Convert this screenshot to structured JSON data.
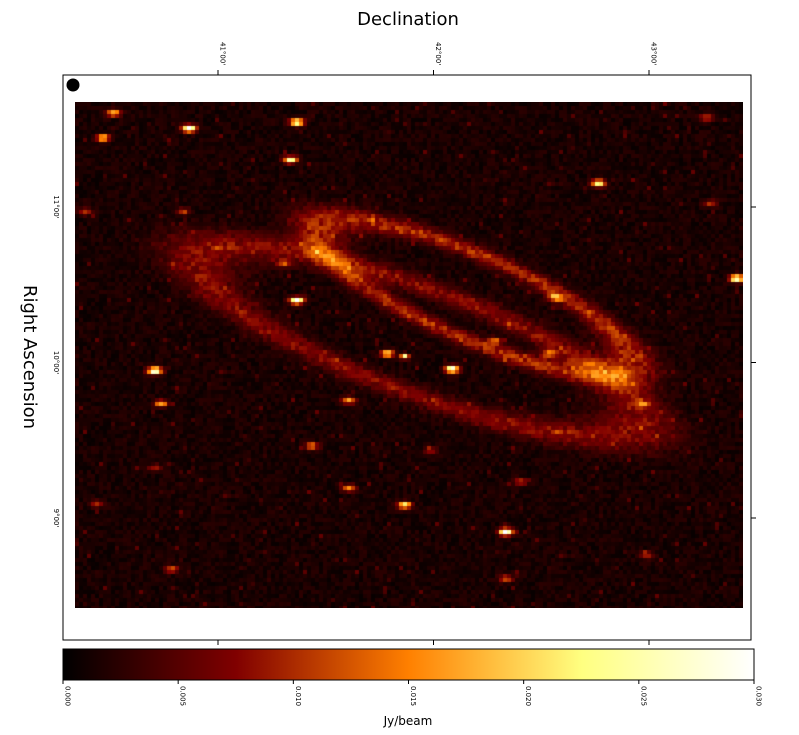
{
  "chart_data": {
    "type": "heatmap",
    "xlabel": "Declination",
    "ylabel": "Right Ascension",
    "x_ticks": [
      "41°00'",
      "42°00'",
      "43°00'"
    ],
    "x_tick_values": [
      41.0,
      42.0,
      43.0
    ],
    "y_ticks": [
      "11°00'",
      "10°00'",
      "9°00'"
    ],
    "y_tick_values": [
      11.0,
      10.0,
      9.0
    ],
    "xlim": [
      40.35,
      43.45
    ],
    "ylim": [
      8.4,
      11.65
    ],
    "grid": false,
    "colormap": "afmhot",
    "colorbar": {
      "label": "Jy/beam",
      "min": 0.0,
      "max": 0.03,
      "ticks": [
        "0.000",
        "0.005",
        "0.010",
        "0.015",
        "0.020",
        "0.025",
        "0.030"
      ],
      "tick_values": [
        0.0,
        0.005,
        0.01,
        0.015,
        0.02,
        0.025,
        0.03
      ]
    },
    "beam_marker": "filled-circle",
    "background_level": 0.0015,
    "structures": [
      {
        "name": "ring",
        "center": [
          42.2,
          10.4
        ],
        "semi_axes": [
          0.85,
          0.25
        ],
        "angle_deg": -32,
        "peak": 0.009
      },
      {
        "name": "outer-arm",
        "center": [
          41.95,
          10.12
        ],
        "semi_axes": [
          1.15,
          0.32
        ],
        "angle_deg": -28,
        "peak": 0.0065
      },
      {
        "name": "nucleus",
        "center": [
          41.88,
          10.02
        ],
        "peak": 0.022
      }
    ],
    "sources": [
      {
        "x": 40.88,
        "y": 11.48,
        "peak": 0.03
      },
      {
        "x": 41.38,
        "y": 11.52,
        "peak": 0.026
      },
      {
        "x": 41.35,
        "y": 11.28,
        "peak": 0.024
      },
      {
        "x": 40.48,
        "y": 11.42,
        "peak": 0.02
      },
      {
        "x": 40.53,
        "y": 11.58,
        "peak": 0.018
      },
      {
        "x": 41.38,
        "y": 10.38,
        "peak": 0.03
      },
      {
        "x": 40.72,
        "y": 9.93,
        "peak": 0.03
      },
      {
        "x": 42.1,
        "y": 9.94,
        "peak": 0.03
      },
      {
        "x": 42.35,
        "y": 8.9,
        "peak": 0.03
      },
      {
        "x": 43.42,
        "y": 10.52,
        "peak": 0.029
      },
      {
        "x": 42.78,
        "y": 11.13,
        "peak": 0.024
      },
      {
        "x": 41.88,
        "y": 9.07,
        "peak": 0.022
      },
      {
        "x": 40.75,
        "y": 9.72,
        "peak": 0.016
      },
      {
        "x": 41.8,
        "y": 10.04,
        "peak": 0.02
      },
      {
        "x": 41.62,
        "y": 9.74,
        "peak": 0.016
      },
      {
        "x": 41.45,
        "y": 9.45,
        "peak": 0.014
      },
      {
        "x": 41.62,
        "y": 9.18,
        "peak": 0.014
      },
      {
        "x": 42.58,
        "y": 10.4,
        "peak": 0.015
      },
      {
        "x": 42.55,
        "y": 10.04,
        "peak": 0.012
      },
      {
        "x": 42.3,
        "y": 10.12,
        "peak": 0.012
      },
      {
        "x": 42.35,
        "y": 8.6,
        "peak": 0.012
      },
      {
        "x": 41.32,
        "y": 10.62,
        "peak": 0.011
      },
      {
        "x": 40.8,
        "y": 8.66,
        "peak": 0.011
      },
      {
        "x": 42.42,
        "y": 9.22,
        "peak": 0.01
      },
      {
        "x": 43.28,
        "y": 11.55,
        "peak": 0.01
      },
      {
        "x": 42.98,
        "y": 9.72,
        "peak": 0.01
      },
      {
        "x": 40.85,
        "y": 10.95,
        "peak": 0.009
      },
      {
        "x": 43.3,
        "y": 11.0,
        "peak": 0.009
      },
      {
        "x": 40.4,
        "y": 10.95,
        "peak": 0.009
      },
      {
        "x": 40.45,
        "y": 9.08,
        "peak": 0.009
      },
      {
        "x": 43.0,
        "y": 8.75,
        "peak": 0.008
      },
      {
        "x": 42.0,
        "y": 9.42,
        "peak": 0.008
      },
      {
        "x": 40.72,
        "y": 9.31,
        "peak": 0.008
      }
    ]
  }
}
